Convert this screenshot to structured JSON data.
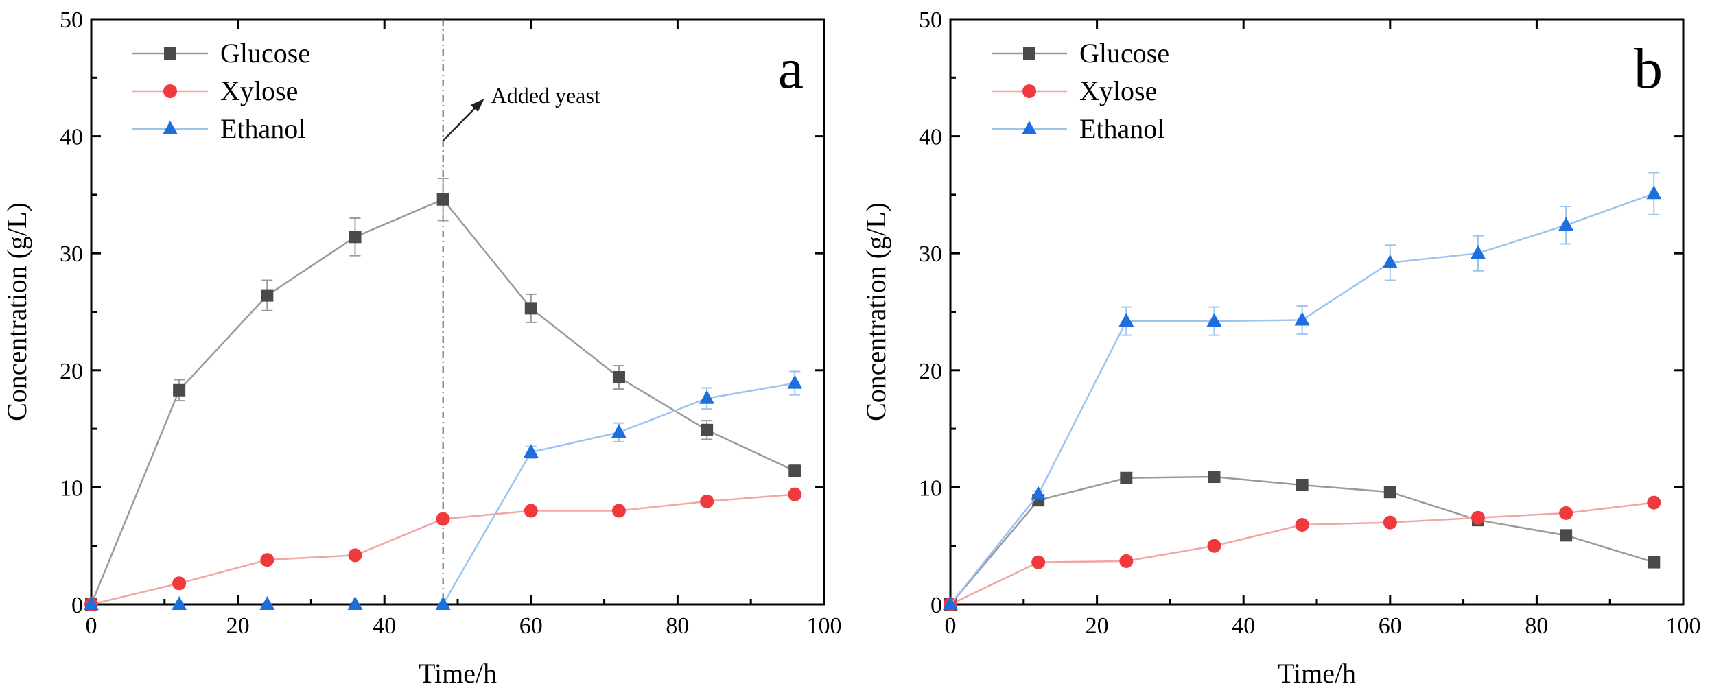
{
  "chart_data": [
    {
      "type": "line",
      "panel_label": "a",
      "xlabel": "Time/h",
      "ylabel": "Concentration (g/L)",
      "xlim": [
        0,
        100
      ],
      "ylim": [
        0,
        50
      ],
      "xticks": [
        0,
        20,
        40,
        60,
        80,
        100
      ],
      "yticks": [
        0,
        10,
        20,
        30,
        40,
        50
      ],
      "legend_position": "top-left",
      "annotation": {
        "text": "Added yeast",
        "x": 48
      },
      "series": [
        {
          "name": "Glucose",
          "marker": "square",
          "color": "#4a4a4a",
          "line_color": "#9a9a9a",
          "x": [
            0,
            12,
            24,
            36,
            48,
            60,
            72,
            84,
            96
          ],
          "y": [
            0,
            18.3,
            26.4,
            31.4,
            34.6,
            25.3,
            19.4,
            14.9,
            11.4
          ],
          "err": [
            0,
            0.9,
            1.3,
            1.6,
            1.8,
            1.2,
            1.0,
            0.8,
            0.5
          ]
        },
        {
          "name": "Xylose",
          "marker": "circle",
          "color": "#f0393c",
          "line_color": "#f2a5a5",
          "x": [
            0,
            12,
            24,
            36,
            48,
            60,
            72,
            84,
            96
          ],
          "y": [
            0,
            1.8,
            3.8,
            4.2,
            7.3,
            8.0,
            8.0,
            8.8,
            9.4
          ],
          "err": [
            0,
            0,
            0,
            0,
            0,
            0,
            0,
            0,
            0
          ]
        },
        {
          "name": "Ethanol",
          "marker": "triangle",
          "color": "#1c6fdc",
          "line_color": "#9cc4ef",
          "x": [
            0,
            12,
            24,
            36,
            48,
            60,
            72,
            84,
            96
          ],
          "y": [
            0,
            0,
            0,
            0,
            0,
            13.0,
            14.7,
            17.6,
            18.9
          ],
          "err": [
            0,
            0,
            0,
            0,
            0,
            0.5,
            0.8,
            0.9,
            1.0
          ],
          "line_from_index": 4
        }
      ]
    },
    {
      "type": "line",
      "panel_label": "b",
      "xlabel": "Time/h",
      "ylabel": "Concentration (g/L)",
      "xlim": [
        0,
        100
      ],
      "ylim": [
        0,
        50
      ],
      "xticks": [
        0,
        20,
        40,
        60,
        80,
        100
      ],
      "yticks": [
        0,
        10,
        20,
        30,
        40,
        50
      ],
      "legend_position": "top-left",
      "series": [
        {
          "name": "Glucose",
          "marker": "square",
          "color": "#4a4a4a",
          "line_color": "#9a9a9a",
          "x": [
            0,
            12,
            24,
            36,
            48,
            60,
            72,
            84,
            96
          ],
          "y": [
            0,
            8.9,
            10.8,
            10.9,
            10.2,
            9.6,
            7.2,
            5.9,
            3.6
          ],
          "err": [
            0,
            0,
            0,
            0,
            0,
            0,
            0,
            0,
            0
          ]
        },
        {
          "name": "Xylose",
          "marker": "circle",
          "color": "#f0393c",
          "line_color": "#f2a5a5",
          "x": [
            0,
            12,
            24,
            36,
            48,
            60,
            72,
            84,
            96
          ],
          "y": [
            0,
            3.6,
            3.7,
            5.0,
            6.8,
            7.0,
            7.4,
            7.8,
            8.7
          ],
          "err": [
            0,
            0,
            0,
            0,
            0,
            0,
            0,
            0,
            0
          ]
        },
        {
          "name": "Ethanol",
          "marker": "triangle",
          "color": "#1c6fdc",
          "line_color": "#9cc4ef",
          "x": [
            0,
            12,
            24,
            36,
            48,
            60,
            72,
            84,
            96
          ],
          "y": [
            0,
            9.4,
            24.2,
            24.2,
            24.3,
            29.2,
            30.0,
            32.4,
            35.1
          ],
          "err": [
            0,
            0.3,
            1.2,
            1.2,
            1.2,
            1.5,
            1.5,
            1.6,
            1.8
          ]
        }
      ]
    }
  ]
}
